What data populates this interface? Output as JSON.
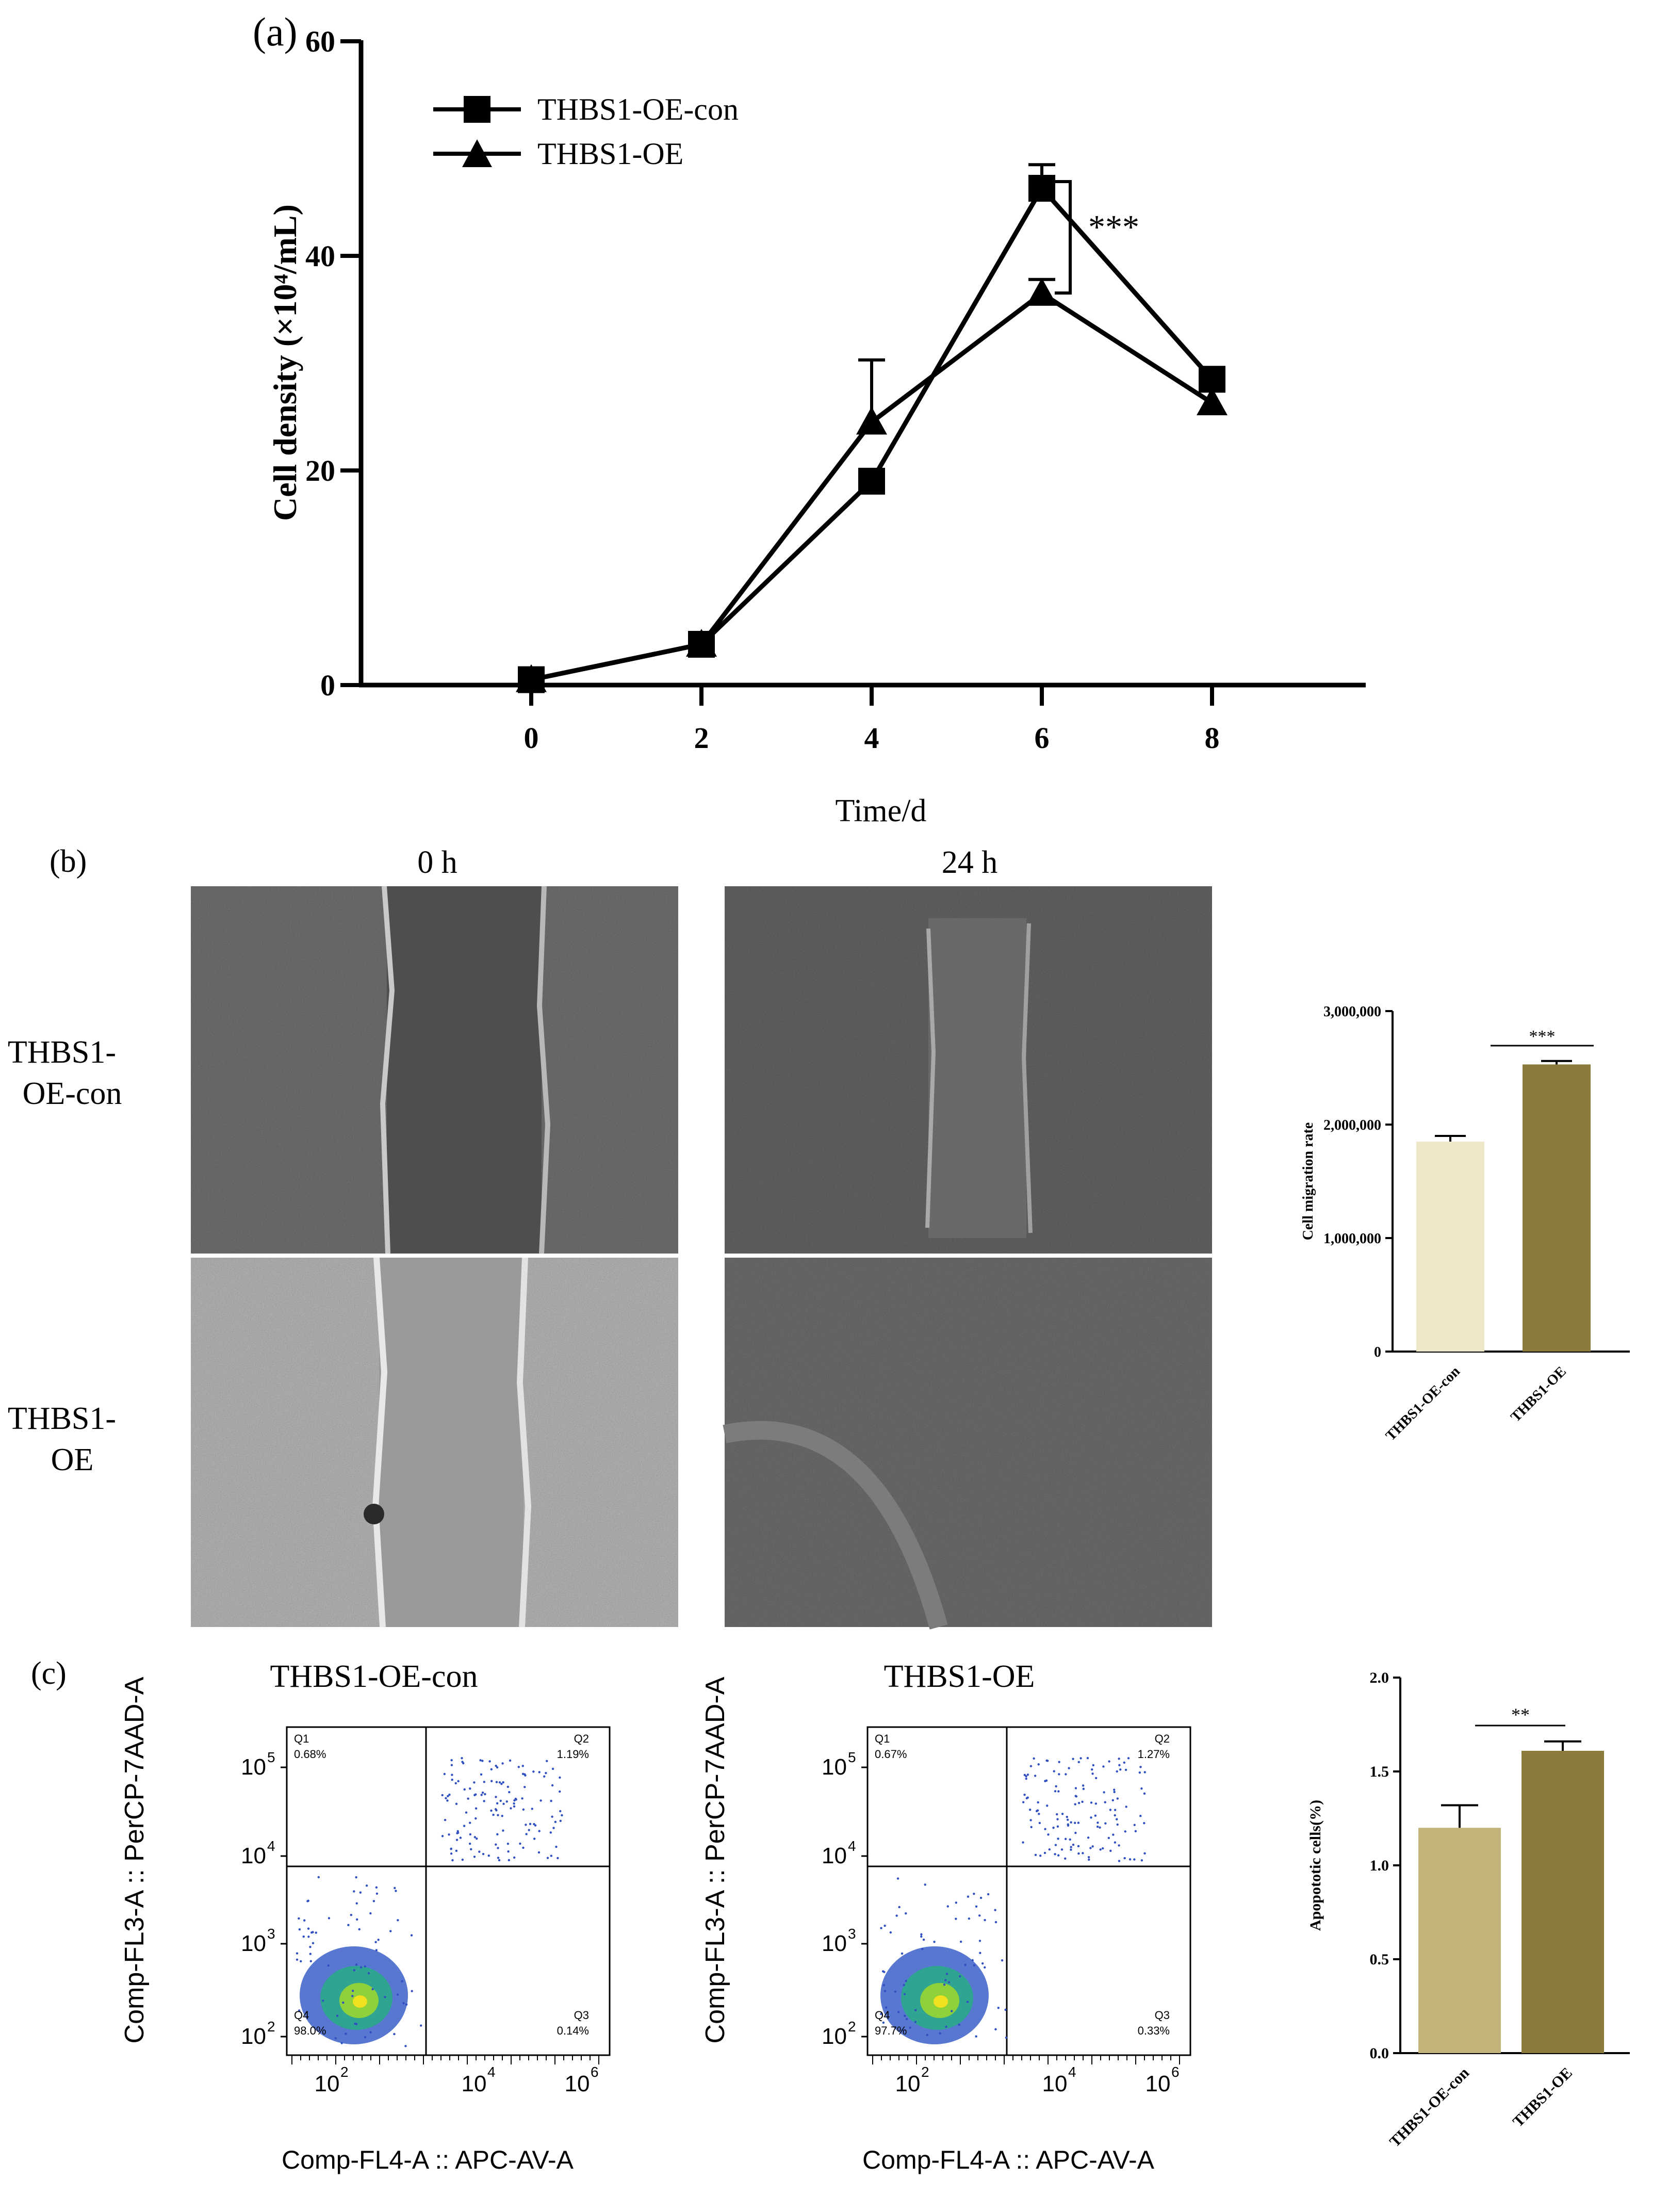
{
  "panel_a": {
    "label": "(a)",
    "legend": [
      "THBS1-OE-con",
      "THBS1-OE"
    ],
    "significance": "***"
  },
  "panel_b": {
    "label": "(b)",
    "time_labels": [
      "0 h",
      "24 h"
    ],
    "row_labels": [
      [
        "THBS1-",
        "OE-con"
      ],
      [
        "THBS1-",
        "OE"
      ]
    ],
    "significance": "***"
  },
  "panel_c": {
    "label": "(c)",
    "plot_titles": [
      "THBS1-OE-con",
      "THBS1-OE"
    ],
    "flow_ylabel": "Comp-FL3-A :: PerCP-7AAD-A",
    "flow_xlabel": "Comp-FL4-A :: APC-AV-A",
    "flow_quadrants": [
      {
        "Q1": "0.68%",
        "Q2": "1.19%",
        "Q3": "0.14%",
        "Q4": "98.0%"
      },
      {
        "Q1": "0.67%",
        "Q2": "1.27%",
        "Q3": "0.33%",
        "Q4": "97.7%"
      }
    ],
    "flow_yticks": [
      "10",
      "10",
      "10",
      "10"
    ],
    "flow_ytick_exps": [
      "5",
      "4",
      "3",
      "2"
    ],
    "flow_xticks": [
      "10",
      "10",
      "10"
    ],
    "flow_xtick_exps": [
      "2",
      "4",
      "6"
    ],
    "significance": "**"
  },
  "colors": {
    "line": "#000000",
    "bar_b_con": "#efe8c8",
    "bar_b_oe": "#8b7b3c",
    "bar_c_con": "#c1b37a",
    "bar_c_oe": "#8b7b3c"
  },
  "chart_data": [
    {
      "type": "line",
      "x": [
        0,
        2,
        4,
        6,
        8
      ],
      "series": [
        {
          "name": "THBS1-OE-con",
          "marker": "square",
          "values": [
            0.5,
            3.8,
            19,
            46.3,
            28.5
          ],
          "errors": [
            0,
            0,
            0,
            2.2,
            0
          ]
        },
        {
          "name": "THBS1-OE",
          "marker": "triangle",
          "values": [
            0.5,
            3.8,
            24.5,
            36.5,
            26.3
          ],
          "errors": [
            0,
            0,
            5.8,
            1.3,
            0
          ]
        }
      ],
      "xlabel": "Time/d",
      "ylabel": "Cell density (×10⁴/mL)",
      "ylim": [
        0,
        60
      ],
      "yticks": [
        0,
        20,
        40,
        60
      ],
      "xticks": [
        0,
        2,
        4,
        6,
        8
      ]
    },
    {
      "type": "bar",
      "categories": [
        "THBS1-OE-con",
        "THBS1-OE"
      ],
      "values": [
        1850000,
        2530000
      ],
      "errors": [
        50000,
        30000
      ],
      "ylabel": "Cell migration rate",
      "ylim": [
        0,
        3000000
      ],
      "yticks": [
        "0",
        "1,000,000",
        "2,000,000",
        "3,000,000"
      ]
    },
    {
      "type": "bar",
      "categories": [
        "THBS1-OE-con",
        "THBS1-OE"
      ],
      "values": [
        1.2,
        1.61
      ],
      "errors": [
        0.12,
        0.05
      ],
      "ylabel": "Apopototic cells(%)",
      "ylim": [
        0,
        2.0
      ],
      "yticks": [
        "0.0",
        "0.5",
        "1.0",
        "1.5",
        "2.0"
      ]
    }
  ]
}
